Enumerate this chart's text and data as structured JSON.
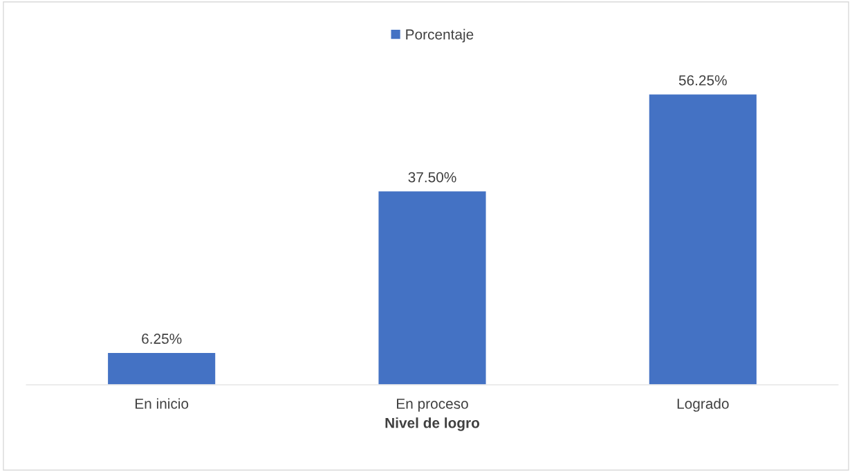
{
  "chart_data": {
    "type": "bar",
    "xlabel": "Nivel de logro",
    "categories": [
      "En inicio",
      "En proceso",
      "Logrado"
    ],
    "series": [
      {
        "name": "Porcentaje",
        "color": "#4472c4",
        "values": [
          6.25,
          37.5,
          56.25
        ],
        "value_labels": [
          "6.25%",
          "37.50%",
          "56.25%"
        ]
      }
    ],
    "legend": "top",
    "grid": false
  }
}
